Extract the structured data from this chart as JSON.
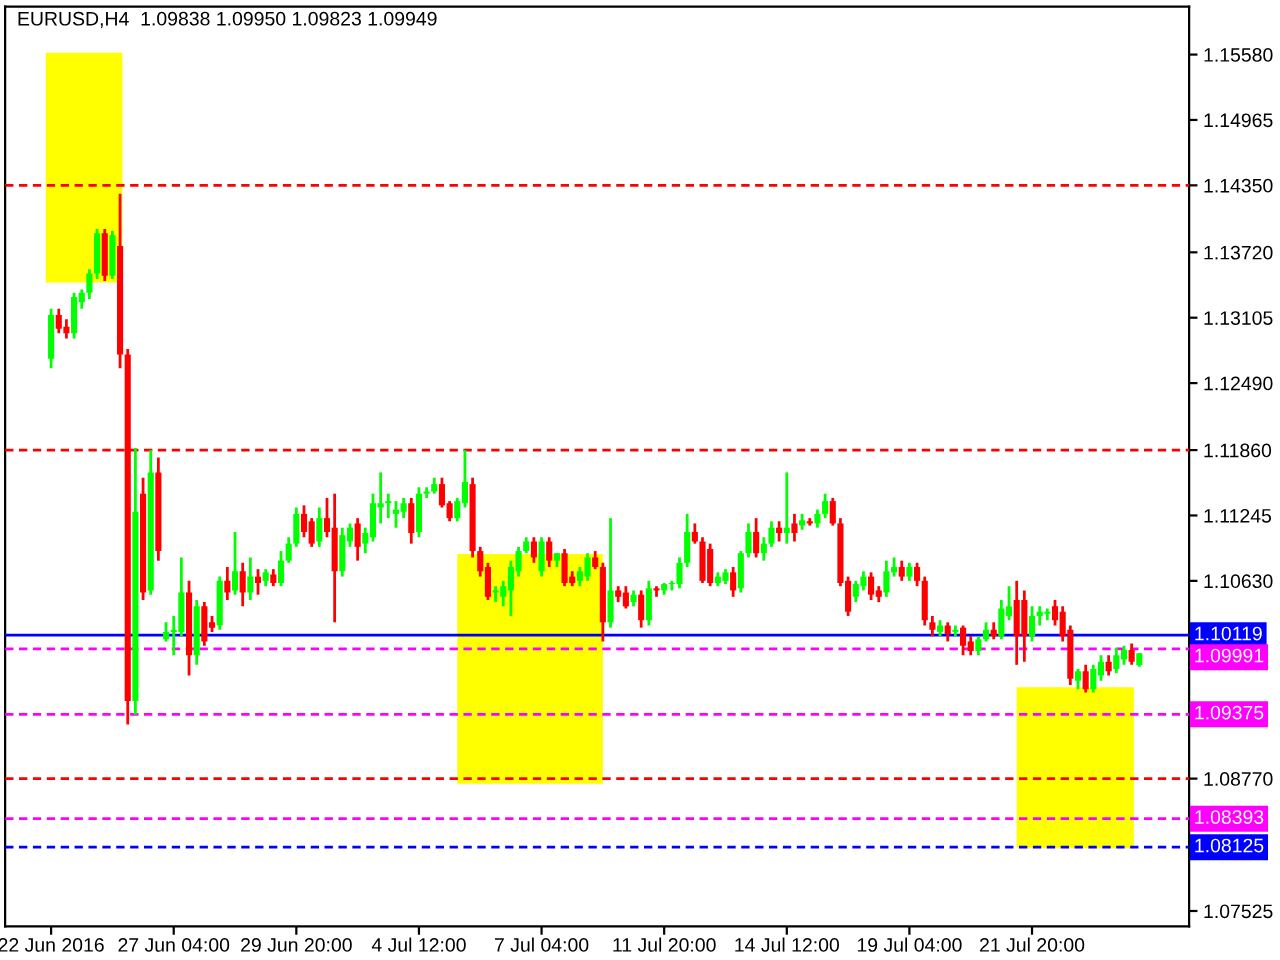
{
  "chart_data": {
    "type": "candlestick",
    "title": "EURUSD,H4  1.09838 1.09950 1.09823 1.09949",
    "categories": [
      "22 Jun 2016",
      null,
      null,
      null,
      null,
      null,
      null,
      null,
      null,
      null,
      null,
      null,
      null,
      null,
      null,
      null,
      "27 Jun 04:00",
      null,
      null,
      null,
      null,
      null,
      null,
      null,
      null,
      null,
      null,
      null,
      null,
      null,
      null,
      null,
      "29 Jun 20:00",
      null,
      null,
      null,
      null,
      null,
      null,
      null,
      null,
      null,
      null,
      null,
      null,
      null,
      null,
      null,
      "4 Jul 12:00",
      null,
      null,
      null,
      null,
      null,
      null,
      null,
      null,
      null,
      null,
      null,
      null,
      null,
      null,
      null,
      "7 Jul 04:00",
      null,
      null,
      null,
      null,
      null,
      null,
      null,
      null,
      null,
      null,
      null,
      null,
      null,
      null,
      null,
      "11 Jul 20:00",
      null,
      null,
      null,
      null,
      null,
      null,
      null,
      null,
      null,
      null,
      null,
      null,
      null,
      null,
      null,
      "14 Jul 12:00",
      null,
      null,
      null,
      null,
      null,
      null,
      null,
      null,
      null,
      null,
      null,
      null,
      null,
      null,
      null,
      "19 Jul 04:00",
      null,
      null,
      null,
      null,
      null,
      null,
      null,
      null,
      null,
      null,
      null,
      null,
      null,
      null,
      null,
      "21 Jul 20:00",
      null,
      null,
      null,
      null,
      null,
      null,
      null,
      null,
      null,
      null,
      null,
      null,
      null,
      null
    ],
    "ohlc": [
      [
        1.1272,
        1.1319,
        1.1263,
        1.1313
      ],
      [
        1.1313,
        1.1319,
        1.1296,
        1.13
      ],
      [
        1.1302,
        1.1309,
        1.1291,
        1.1296
      ],
      [
        1.1296,
        1.1334,
        1.1291,
        1.133
      ],
      [
        1.1325,
        1.1337,
        1.1319,
        1.1334
      ],
      [
        1.1334,
        1.1356,
        1.1328,
        1.1352
      ],
      [
        1.1352,
        1.1394,
        1.1347,
        1.139
      ],
      [
        1.139,
        1.1394,
        1.1345,
        1.135
      ],
      [
        1.135,
        1.1392,
        1.1347,
        1.1388
      ],
      [
        1.1378,
        1.1427,
        1.1263,
        1.1276
      ],
      [
        1.1276,
        1.1281,
        1.0928,
        1.095
      ],
      [
        1.095,
        1.1188,
        1.0937,
        1.1128
      ],
      [
        1.1145,
        1.116,
        1.1045,
        1.1052
      ],
      [
        1.1054,
        1.1186,
        1.105,
        1.1165
      ],
      [
        1.1165,
        1.1179,
        1.1082,
        1.1091
      ],
      [
        1.1008,
        1.1024,
        1.1006,
        1.1015
      ],
      [
        1.1015,
        1.103,
        1.0993,
        1.1017
      ],
      [
        1.1015,
        1.1085,
        1.1011,
        1.1052
      ],
      [
        1.1052,
        1.1063,
        1.0974,
        1.0993
      ],
      [
        1.0993,
        1.1045,
        1.0984,
        1.1039
      ],
      [
        1.1039,
        1.1043,
        1.1002,
        1.1006
      ],
      [
        1.1024,
        1.103,
        1.1015,
        1.1019
      ],
      [
        1.1021,
        1.1067,
        1.1017,
        1.1063
      ],
      [
        1.1063,
        1.1076,
        1.1045,
        1.1052
      ],
      [
        1.1054,
        1.1109,
        1.105,
        1.1072
      ],
      [
        1.1072,
        1.108,
        1.1039,
        1.1052
      ],
      [
        1.1052,
        1.1085,
        1.1045,
        1.1067
      ],
      [
        1.1067,
        1.1074,
        1.105,
        1.1061
      ],
      [
        1.1063,
        1.1074,
        1.1058,
        1.1071
      ],
      [
        1.1069,
        1.1074,
        1.1058,
        1.1061
      ],
      [
        1.1061,
        1.1091,
        1.1058,
        1.1082
      ],
      [
        1.1082,
        1.1104,
        1.108,
        1.1098
      ],
      [
        1.1098,
        1.1132,
        1.1095,
        1.1126
      ],
      [
        1.1126,
        1.1134,
        1.1104,
        1.1109
      ],
      [
        1.1119,
        1.1122,
        1.1095,
        1.1098
      ],
      [
        1.11,
        1.1132,
        1.1095,
        1.1122
      ],
      [
        1.1122,
        1.1141,
        1.1104,
        1.1109
      ],
      [
        1.1113,
        1.1145,
        1.1024,
        1.1072
      ],
      [
        1.1072,
        1.1113,
        1.1067,
        1.1106
      ],
      [
        1.11,
        1.1117,
        1.1095,
        1.1113
      ],
      [
        1.1117,
        1.1122,
        1.1082,
        1.1095
      ],
      [
        1.1098,
        1.1113,
        1.1089,
        1.1108
      ],
      [
        1.1104,
        1.1145,
        1.11,
        1.1136
      ],
      [
        1.1132,
        1.1165,
        1.1117,
        1.1136
      ],
      [
        1.1136,
        1.1145,
        1.1122,
        1.1138
      ],
      [
        1.1126,
        1.1138,
        1.1113,
        1.113
      ],
      [
        1.1128,
        1.1141,
        1.1122,
        1.1136
      ],
      [
        1.1136,
        1.1141,
        1.1098,
        1.1108
      ],
      [
        1.1109,
        1.1151,
        1.1104,
        1.1145
      ],
      [
        1.1145,
        1.1151,
        1.1141,
        1.1147
      ],
      [
        1.1147,
        1.116,
        1.1145,
        1.1154
      ],
      [
        1.1154,
        1.116,
        1.1132,
        1.1134
      ],
      [
        1.1136,
        1.1138,
        1.1119,
        1.1122
      ],
      [
        1.1122,
        1.1141,
        1.1119,
        1.1138
      ],
      [
        1.1136,
        1.1186,
        1.1132,
        1.1156
      ],
      [
        1.1154,
        1.116,
        1.1085,
        1.1091
      ],
      [
        1.1091,
        1.1095,
        1.1067,
        1.1072
      ],
      [
        1.1076,
        1.108,
        1.1045,
        1.1048
      ],
      [
        1.1052,
        1.1058,
        1.1043,
        1.1054
      ],
      [
        1.1048,
        1.1063,
        1.1039,
        1.1058
      ],
      [
        1.1054,
        1.1082,
        1.103,
        1.1076
      ],
      [
        1.1072,
        1.1095,
        1.1067,
        1.1091
      ],
      [
        1.1091,
        1.1104,
        1.1089,
        1.11
      ],
      [
        1.11,
        1.1104,
        1.108,
        1.1085
      ],
      [
        1.1072,
        1.1104,
        1.1067,
        1.11
      ],
      [
        1.11,
        1.1104,
        1.1076,
        1.1082
      ],
      [
        1.1082,
        1.1089,
        1.1076,
        1.1089
      ],
      [
        1.1089,
        1.1093,
        1.1058,
        1.1061
      ],
      [
        1.1067,
        1.1072,
        1.1058,
        1.1061
      ],
      [
        1.1063,
        1.1076,
        1.1058,
        1.1072
      ],
      [
        1.1067,
        1.1089,
        1.1063,
        1.1085
      ],
      [
        1.1085,
        1.1091,
        1.1074,
        1.1076
      ],
      [
        1.1076,
        1.108,
        1.1006,
        1.1024
      ],
      [
        1.1024,
        1.1122,
        1.1019,
        1.1054
      ],
      [
        1.1054,
        1.1058,
        1.1043,
        1.1048
      ],
      [
        1.1052,
        1.1058,
        1.1037,
        1.1039
      ],
      [
        1.1043,
        1.1054,
        1.1039,
        1.105
      ],
      [
        1.105,
        1.1054,
        1.1019,
        1.1026
      ],
      [
        1.1026,
        1.1063,
        1.1021,
        1.1056
      ],
      [
        1.1056,
        1.1058,
        1.1048,
        1.1054
      ],
      [
        1.1054,
        1.1061,
        1.105,
        1.106
      ],
      [
        1.106,
        1.1063,
        1.1054,
        1.1061
      ],
      [
        1.106,
        1.1085,
        1.1056,
        1.108
      ],
      [
        1.108,
        1.1126,
        1.1076,
        1.1109
      ],
      [
        1.1109,
        1.1117,
        1.1098,
        1.11
      ],
      [
        1.11,
        1.1104,
        1.1061,
        1.1063
      ],
      [
        1.1093,
        1.1098,
        1.1058,
        1.1061
      ],
      [
        1.1061,
        1.1071,
        1.1058,
        1.1067
      ],
      [
        1.1063,
        1.1074,
        1.106,
        1.1071
      ],
      [
        1.1071,
        1.1076,
        1.1048,
        1.1054
      ],
      [
        1.1056,
        1.1091,
        1.1052,
        1.1089
      ],
      [
        1.1089,
        1.1117,
        1.1085,
        1.1109
      ],
      [
        1.1109,
        1.1122,
        1.1085,
        1.1089
      ],
      [
        1.1089,
        1.1104,
        1.1082,
        1.1098
      ],
      [
        1.1098,
        1.1119,
        1.1095,
        1.1113
      ],
      [
        1.1113,
        1.1119,
        1.11,
        1.1108
      ],
      [
        1.1108,
        1.1165,
        1.1098,
        1.1113
      ],
      [
        1.1117,
        1.1126,
        1.11,
        1.1108
      ],
      [
        1.1115,
        1.1126,
        1.1111,
        1.112
      ],
      [
        1.1119,
        1.1122,
        1.1115,
        1.1117
      ],
      [
        1.1117,
        1.113,
        1.1113,
        1.1126
      ],
      [
        1.1126,
        1.1145,
        1.1122,
        1.1138
      ],
      [
        1.1138,
        1.1141,
        1.1115,
        1.1117
      ],
      [
        1.1117,
        1.1122,
        1.1058,
        1.1061
      ],
      [
        1.1063,
        1.1067,
        1.103,
        1.1034
      ],
      [
        1.1048,
        1.1063,
        1.1043,
        1.106
      ],
      [
        1.1058,
        1.1072,
        1.1054,
        1.1067
      ],
      [
        1.1067,
        1.1071,
        1.1045,
        1.105
      ],
      [
        1.1054,
        1.1058,
        1.1043,
        1.1048
      ],
      [
        1.1052,
        1.1082,
        1.1048,
        1.1072
      ],
      [
        1.1071,
        1.1085,
        1.1067,
        1.1076
      ],
      [
        1.1076,
        1.1082,
        1.1063,
        1.1067
      ],
      [
        1.1067,
        1.108,
        1.1063,
        1.1076
      ],
      [
        1.1076,
        1.108,
        1.1058,
        1.1063
      ],
      [
        1.1063,
        1.1067,
        1.1021,
        1.1026
      ],
      [
        1.1024,
        1.103,
        1.1011,
        1.1017
      ],
      [
        1.1015,
        1.1026,
        1.1011,
        1.1021
      ],
      [
        1.1021,
        1.1024,
        1.1006,
        1.1013
      ],
      [
        1.1015,
        1.1021,
        1.1011,
        1.1017
      ],
      [
        1.1019,
        1.1021,
        1.0993,
        1.1002
      ],
      [
        1.1006,
        1.1011,
        1.0993,
        1.0997
      ],
      [
        1.0997,
        1.1011,
        1.0993,
        1.1008
      ],
      [
        1.1008,
        1.1024,
        1.1006,
        1.1017
      ],
      [
        1.1017,
        1.1024,
        1.1008,
        1.1011
      ],
      [
        1.1011,
        1.1045,
        1.1008,
        1.1037
      ],
      [
        1.103,
        1.1058,
        1.1026,
        1.1039
      ],
      [
        1.1045,
        1.1063,
        1.0984,
        1.1011
      ],
      [
        1.1045,
        1.1054,
        1.0987,
        1.1011
      ],
      [
        1.1011,
        1.1039,
        1.1006,
        1.103
      ],
      [
        1.103,
        1.1039,
        1.1021,
        1.1034
      ],
      [
        1.1032,
        1.1037,
        1.1026,
        1.1034
      ],
      [
        1.1039,
        1.1045,
        1.1021,
        1.1026
      ],
      [
        1.1034,
        1.1039,
        1.1006,
        1.1011
      ],
      [
        1.1017,
        1.1021,
        1.0965,
        1.0971
      ],
      [
        1.0969,
        1.098,
        1.0961,
        1.0978
      ],
      [
        1.0978,
        1.0984,
        1.0958,
        1.0961
      ],
      [
        1.0961,
        1.0984,
        1.0958,
        1.098
      ],
      [
        1.0974,
        1.0993,
        1.0969,
        1.0987
      ],
      [
        1.0987,
        1.0993,
        1.0974,
        1.0978
      ],
      [
        1.098,
        1.1,
        1.0976,
        1.0993
      ],
      [
        1.0989,
        1.1002,
        1.0984,
        1.0998
      ],
      [
        1.0998,
        1.1004,
        1.0984,
        1.0987
      ],
      [
        1.09838,
        1.0995,
        1.09823,
        1.09949
      ]
    ],
    "ylim": [
      1.0738,
      1.1603
    ],
    "yticks": [
      {
        "value": 1.1558,
        "label": "1.15580"
      },
      {
        "value": 1.14965,
        "label": "1.14965"
      },
      {
        "value": 1.1435,
        "label": "1.14350"
      },
      {
        "value": 1.1372,
        "label": "1.13720"
      },
      {
        "value": 1.13105,
        "label": "1.13105"
      },
      {
        "value": 1.1249,
        "label": "1.12490"
      },
      {
        "value": 1.1186,
        "label": "1.11860"
      },
      {
        "value": 1.11245,
        "label": "1.11245"
      },
      {
        "value": 1.1063,
        "label": "1.10630"
      },
      {
        "value": 1.0877,
        "label": "1.08770"
      },
      {
        "value": 1.07525,
        "label": "1.07525"
      }
    ],
    "ref_lines": [
      {
        "axis": "y",
        "value": 1.1435,
        "color": "#ff0000",
        "line_style": "dashed"
      },
      {
        "axis": "y",
        "value": 1.1186,
        "color": "#ff0000",
        "line_style": "dashed"
      },
      {
        "axis": "y",
        "value": 1.10119,
        "label": "1.10119",
        "color": "#0000ff",
        "line_style": "solid"
      },
      {
        "axis": "y",
        "value": 1.09991,
        "label": "1.09991",
        "color": "#ff00ff",
        "line_style": "dashed"
      },
      {
        "axis": "y",
        "value": 1.09375,
        "label": "1.09375",
        "color": "#ff00ff",
        "line_style": "dashed"
      },
      {
        "axis": "y",
        "value": 1.0877,
        "color": "#ff0000",
        "line_style": "dashed"
      },
      {
        "axis": "y",
        "value": 1.08393,
        "label": "1.08393",
        "color": "#ff00ff",
        "line_style": "dashed"
      },
      {
        "axis": "y",
        "value": 1.08125,
        "label": "1.08125",
        "color": "#0000ff",
        "line_style": "dashed"
      }
    ],
    "grid": false,
    "legend": false
  }
}
